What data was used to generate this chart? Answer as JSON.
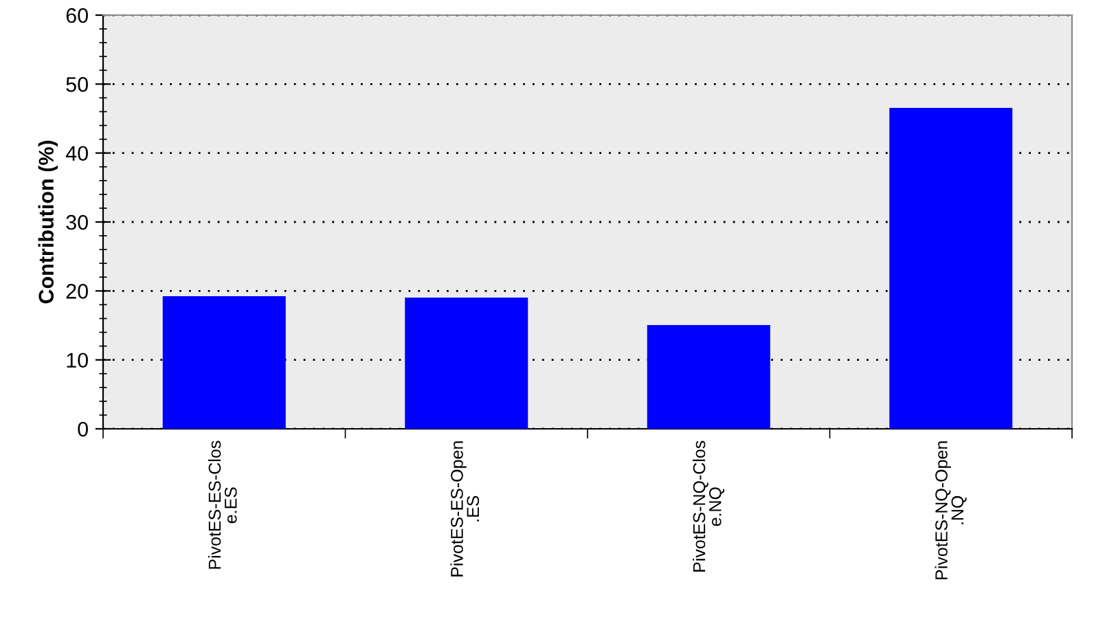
{
  "chart_data": {
    "type": "bar",
    "ylabel": "Contribution (%)",
    "categories": [
      "PivotES-ES-Clos\ne.ES",
      "PivotES-ES-Open\n.ES",
      "PivotES-NQ-Clos\ne.NQ",
      "PivotES-NQ-Open\n.NQ"
    ],
    "values": [
      19.1,
      18.9,
      14.9,
      46.4
    ],
    "color": "#0000ff",
    "ylim": [
      0,
      60
    ],
    "yticks": [
      0,
      10,
      20,
      30,
      40,
      50,
      60
    ],
    "grid": "y"
  }
}
